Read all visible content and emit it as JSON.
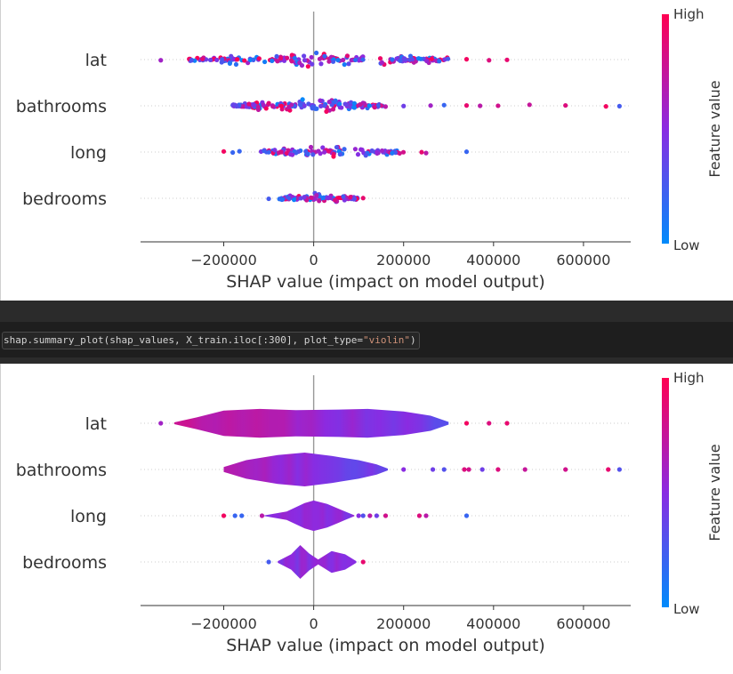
{
  "code": {
    "prefix": "shap.summary_plot(shap_values, X_train.iloc[:300], plot_type=",
    "string_arg": "\"violin\"",
    "suffix": ")"
  },
  "colors": {
    "high": "#ff0052",
    "low": "#008bfb",
    "mid": "#8a2be2",
    "zero_line": "#999999",
    "dark_band": "#2b2b2b",
    "code_bg": "#1e1e1e",
    "string": "#ce9178"
  },
  "chart_data": [
    {
      "type": "scatter",
      "variant": "beeswarm",
      "features": [
        "lat",
        "bathrooms",
        "long",
        "bedrooms"
      ],
      "xlabel": "SHAP value (impact on model output)",
      "x_ticks": [
        -200000,
        0,
        200000,
        400000,
        600000
      ],
      "x_tick_labels": [
        "−200000",
        "0",
        "200000",
        "400000",
        "600000"
      ],
      "xlim": [
        -385000,
        705000
      ],
      "colorbar": {
        "label": "Feature value",
        "high": "High",
        "low": "Low"
      },
      "grid": false,
      "series": [
        {
          "feature": "lat",
          "range": [
            -340000,
            430000
          ],
          "core": [
            -290000,
            300000
          ],
          "outliers": [
            [
              -340000,
              0.6
            ],
            [
              340000,
              0.95
            ],
            [
              390000,
              0.85
            ],
            [
              430000,
              0.9
            ]
          ]
        },
        {
          "feature": "bathrooms",
          "range": [
            -180000,
            680000
          ],
          "core": [
            -180000,
            160000
          ],
          "outliers": [
            [
              200000,
              0.4
            ],
            [
              260000,
              0.6
            ],
            [
              290000,
              0.2
            ],
            [
              340000,
              0.9
            ],
            [
              370000,
              0.7
            ],
            [
              410000,
              0.8
            ],
            [
              480000,
              0.75
            ],
            [
              560000,
              0.85
            ],
            [
              650000,
              0.95
            ],
            [
              680000,
              0.25
            ]
          ]
        },
        {
          "feature": "long",
          "range": [
            -200000,
            340000
          ],
          "core": [
            -120000,
            200000
          ],
          "outliers": [
            [
              -200000,
              0.95
            ],
            [
              -180000,
              0.2
            ],
            [
              -165000,
              0.2
            ],
            [
              240000,
              0.9
            ],
            [
              250000,
              0.7
            ],
            [
              340000,
              0.2
            ]
          ]
        },
        {
          "feature": "bedrooms",
          "range": [
            -100000,
            110000
          ],
          "core": [
            -80000,
            100000
          ],
          "outliers": [
            [
              -100000,
              0.25
            ],
            [
              110000,
              0.9
            ]
          ]
        }
      ]
    },
    {
      "type": "area",
      "variant": "violin",
      "features": [
        "lat",
        "bathrooms",
        "long",
        "bedrooms"
      ],
      "xlabel": "SHAP value (impact on model output)",
      "x_ticks": [
        -200000,
        0,
        200000,
        400000,
        600000
      ],
      "x_tick_labels": [
        "−200000",
        "0",
        "200000",
        "400000",
        "600000"
      ],
      "xlim": [
        -385000,
        705000
      ],
      "colorbar": {
        "label": "Feature value",
        "high": "High",
        "low": "Low"
      },
      "grid": false,
      "series": [
        {
          "feature": "lat",
          "body_range": [
            -310000,
            300000
          ],
          "density": [
            [
              -310000,
              0.05
            ],
            [
              -260000,
              0.35
            ],
            [
              -200000,
              0.75
            ],
            [
              -120000,
              0.85
            ],
            [
              -40000,
              0.78
            ],
            [
              40000,
              0.8
            ],
            [
              120000,
              0.85
            ],
            [
              200000,
              0.7
            ],
            [
              260000,
              0.45
            ],
            [
              300000,
              0.08
            ]
          ],
          "outliers": [
            [
              -340000,
              0.6
            ],
            [
              340000,
              0.95
            ],
            [
              390000,
              0.85
            ],
            [
              430000,
              0.9
            ]
          ]
        },
        {
          "feature": "bathrooms",
          "body_range": [
            -200000,
            165000
          ],
          "density": [
            [
              -200000,
              0.15
            ],
            [
              -150000,
              0.55
            ],
            [
              -80000,
              0.85
            ],
            [
              -20000,
              1.0
            ],
            [
              40000,
              0.8
            ],
            [
              100000,
              0.55
            ],
            [
              140000,
              0.3
            ],
            [
              165000,
              0.05
            ]
          ],
          "outliers": [
            [
              200000,
              0.5
            ],
            [
              265000,
              0.4
            ],
            [
              290000,
              0.3
            ],
            [
              335000,
              0.85
            ],
            [
              345000,
              0.8
            ],
            [
              375000,
              0.4
            ],
            [
              410000,
              0.85
            ],
            [
              470000,
              0.75
            ],
            [
              560000,
              0.8
            ],
            [
              655000,
              0.9
            ],
            [
              680000,
              0.3
            ]
          ]
        },
        {
          "feature": "long",
          "body_range": [
            -110000,
            90000
          ],
          "density": [
            [
              -110000,
              0.02
            ],
            [
              -60000,
              0.25
            ],
            [
              -20000,
              0.75
            ],
            [
              0,
              0.9
            ],
            [
              30000,
              0.7
            ],
            [
              70000,
              0.25
            ],
            [
              90000,
              0.03
            ]
          ],
          "outliers": [
            [
              -200000,
              0.95
            ],
            [
              -175000,
              0.2
            ],
            [
              -160000,
              0.2
            ],
            [
              -115000,
              0.7
            ],
            [
              100000,
              0.5
            ],
            [
              110000,
              0.3
            ],
            [
              125000,
              0.7
            ],
            [
              140000,
              0.4
            ],
            [
              160000,
              0.8
            ],
            [
              235000,
              0.85
            ],
            [
              250000,
              0.7
            ],
            [
              340000,
              0.2
            ]
          ]
        },
        {
          "feature": "bedrooms",
          "body_range": [
            -80000,
            95000
          ],
          "density": [
            [
              -80000,
              0.05
            ],
            [
              -50000,
              0.45
            ],
            [
              -30000,
              1.0
            ],
            [
              -10000,
              0.5
            ],
            [
              10000,
              0.15
            ],
            [
              40000,
              0.65
            ],
            [
              70000,
              0.45
            ],
            [
              95000,
              0.05
            ]
          ],
          "outliers": [
            [
              -100000,
              0.25
            ],
            [
              110000,
              0.9
            ]
          ]
        }
      ]
    }
  ]
}
